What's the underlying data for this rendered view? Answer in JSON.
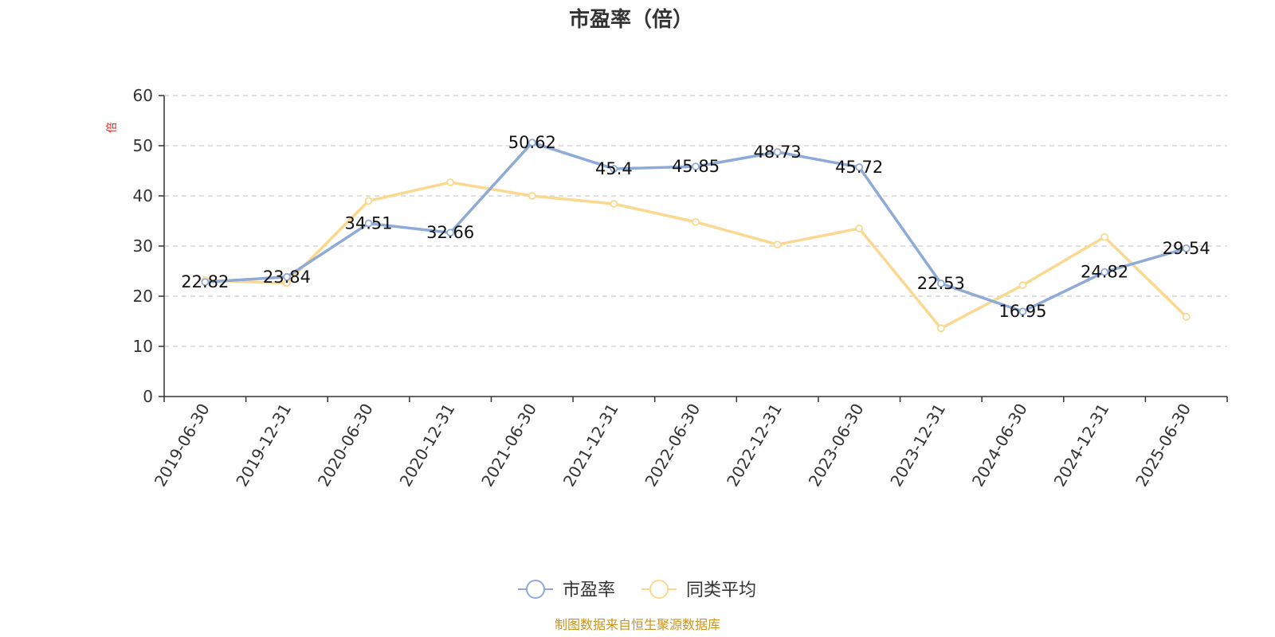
{
  "chart_data": {
    "type": "line",
    "title": "市盈率（倍）",
    "ylabel": "倍",
    "ylim": [
      0,
      60
    ],
    "yticks": [
      0,
      10,
      20,
      30,
      40,
      50,
      60
    ],
    "grid": true,
    "legend_position": "bottom-center",
    "categories": [
      "2019-06-30",
      "2019-12-31",
      "2020-06-30",
      "2020-12-31",
      "2021-06-30",
      "2021-12-31",
      "2022-06-30",
      "2022-12-31",
      "2023-06-30",
      "2023-12-31",
      "2024-06-30",
      "2024-12-31",
      "2025-06-30"
    ],
    "series": [
      {
        "name": "市盈率",
        "color": "#8eaad6",
        "values": [
          22.82,
          23.84,
          34.51,
          32.66,
          50.62,
          45.4,
          45.85,
          48.73,
          45.72,
          22.53,
          16.95,
          24.82,
          29.54
        ],
        "labels": [
          "22.82",
          "23.84",
          "34.51",
          "32.66",
          "50.62",
          "45.4",
          "45.85",
          "48.73",
          "45.72",
          "22.53",
          "16.95",
          "24.82",
          "29.54"
        ]
      },
      {
        "name": "同类平均",
        "color": "#fbd88f",
        "values": [
          23.2,
          22.6,
          39.0,
          42.7,
          40.0,
          38.4,
          34.8,
          30.3,
          33.5,
          13.6,
          22.2,
          31.8,
          15.9
        ]
      }
    ],
    "source": "制图数据来自恒生聚源数据库"
  }
}
